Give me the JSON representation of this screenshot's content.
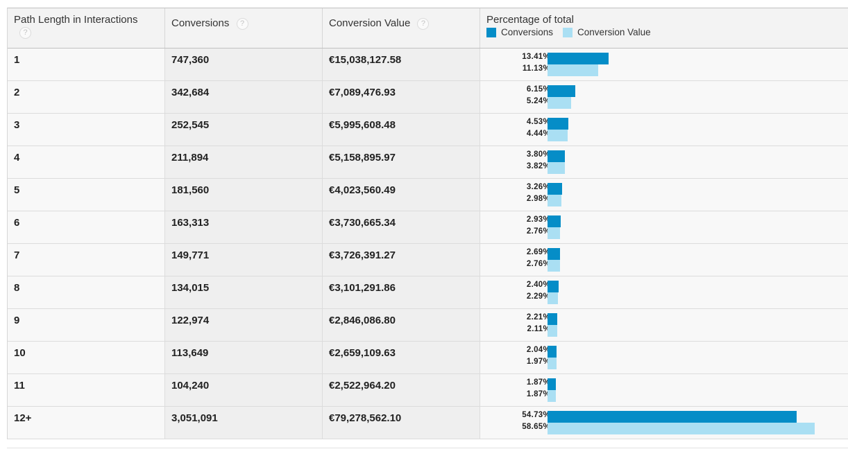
{
  "headers": {
    "path_length": "Path Length in Interactions",
    "conversions": "Conversions",
    "conversion_value": "Conversion Value",
    "percentage": "Percentage of total",
    "help_glyph": "?"
  },
  "legend": {
    "conversions": "Conversions",
    "conversion_value": "Conversion Value"
  },
  "colors": {
    "conversions": "#058dc7",
    "conversion_value": "#aadff3"
  },
  "rows": [
    {
      "path": "1",
      "conversions": "747,360",
      "value": "€15,038,127.58",
      "conv_pct": "13.41%",
      "value_pct": "11.13%"
    },
    {
      "path": "2",
      "conversions": "342,684",
      "value": "€7,089,476.93",
      "conv_pct": "6.15%",
      "value_pct": "5.24%"
    },
    {
      "path": "3",
      "conversions": "252,545",
      "value": "€5,995,608.48",
      "conv_pct": "4.53%",
      "value_pct": "4.44%"
    },
    {
      "path": "4",
      "conversions": "211,894",
      "value": "€5,158,895.97",
      "conv_pct": "3.80%",
      "value_pct": "3.82%"
    },
    {
      "path": "5",
      "conversions": "181,560",
      "value": "€4,023,560.49",
      "conv_pct": "3.26%",
      "value_pct": "2.98%"
    },
    {
      "path": "6",
      "conversions": "163,313",
      "value": "€3,730,665.34",
      "conv_pct": "2.93%",
      "value_pct": "2.76%"
    },
    {
      "path": "7",
      "conversions": "149,771",
      "value": "€3,726,391.27",
      "conv_pct": "2.69%",
      "value_pct": "2.76%"
    },
    {
      "path": "8",
      "conversions": "134,015",
      "value": "€3,101,291.86",
      "conv_pct": "2.40%",
      "value_pct": "2.29%"
    },
    {
      "path": "9",
      "conversions": "122,974",
      "value": "€2,846,086.80",
      "conv_pct": "2.21%",
      "value_pct": "2.11%"
    },
    {
      "path": "10",
      "conversions": "113,649",
      "value": "€2,659,109.63",
      "conv_pct": "2.04%",
      "value_pct": "1.97%"
    },
    {
      "path": "11",
      "conversions": "104,240",
      "value": "€2,522,964.20",
      "conv_pct": "1.87%",
      "value_pct": "1.87%"
    },
    {
      "path": "12+",
      "conversions": "3,051,091",
      "value": "€79,278,562.10",
      "conv_pct": "54.73%",
      "value_pct": "58.65%"
    }
  ],
  "chart_data": {
    "type": "bar",
    "title": "Percentage of total",
    "categories": [
      "1",
      "2",
      "3",
      "4",
      "5",
      "6",
      "7",
      "8",
      "9",
      "10",
      "11",
      "12+"
    ],
    "series": [
      {
        "name": "Conversions",
        "values": [
          13.41,
          6.15,
          4.53,
          3.8,
          3.26,
          2.93,
          2.69,
          2.4,
          2.21,
          2.04,
          1.87,
          54.73
        ]
      },
      {
        "name": "Conversion Value",
        "values": [
          11.13,
          5.24,
          4.44,
          3.82,
          2.98,
          2.76,
          2.76,
          2.29,
          2.11,
          1.97,
          1.87,
          58.65
        ]
      }
    ],
    "orientation": "horizontal",
    "xlabel": "",
    "ylabel": "",
    "legend": "top-left"
  }
}
